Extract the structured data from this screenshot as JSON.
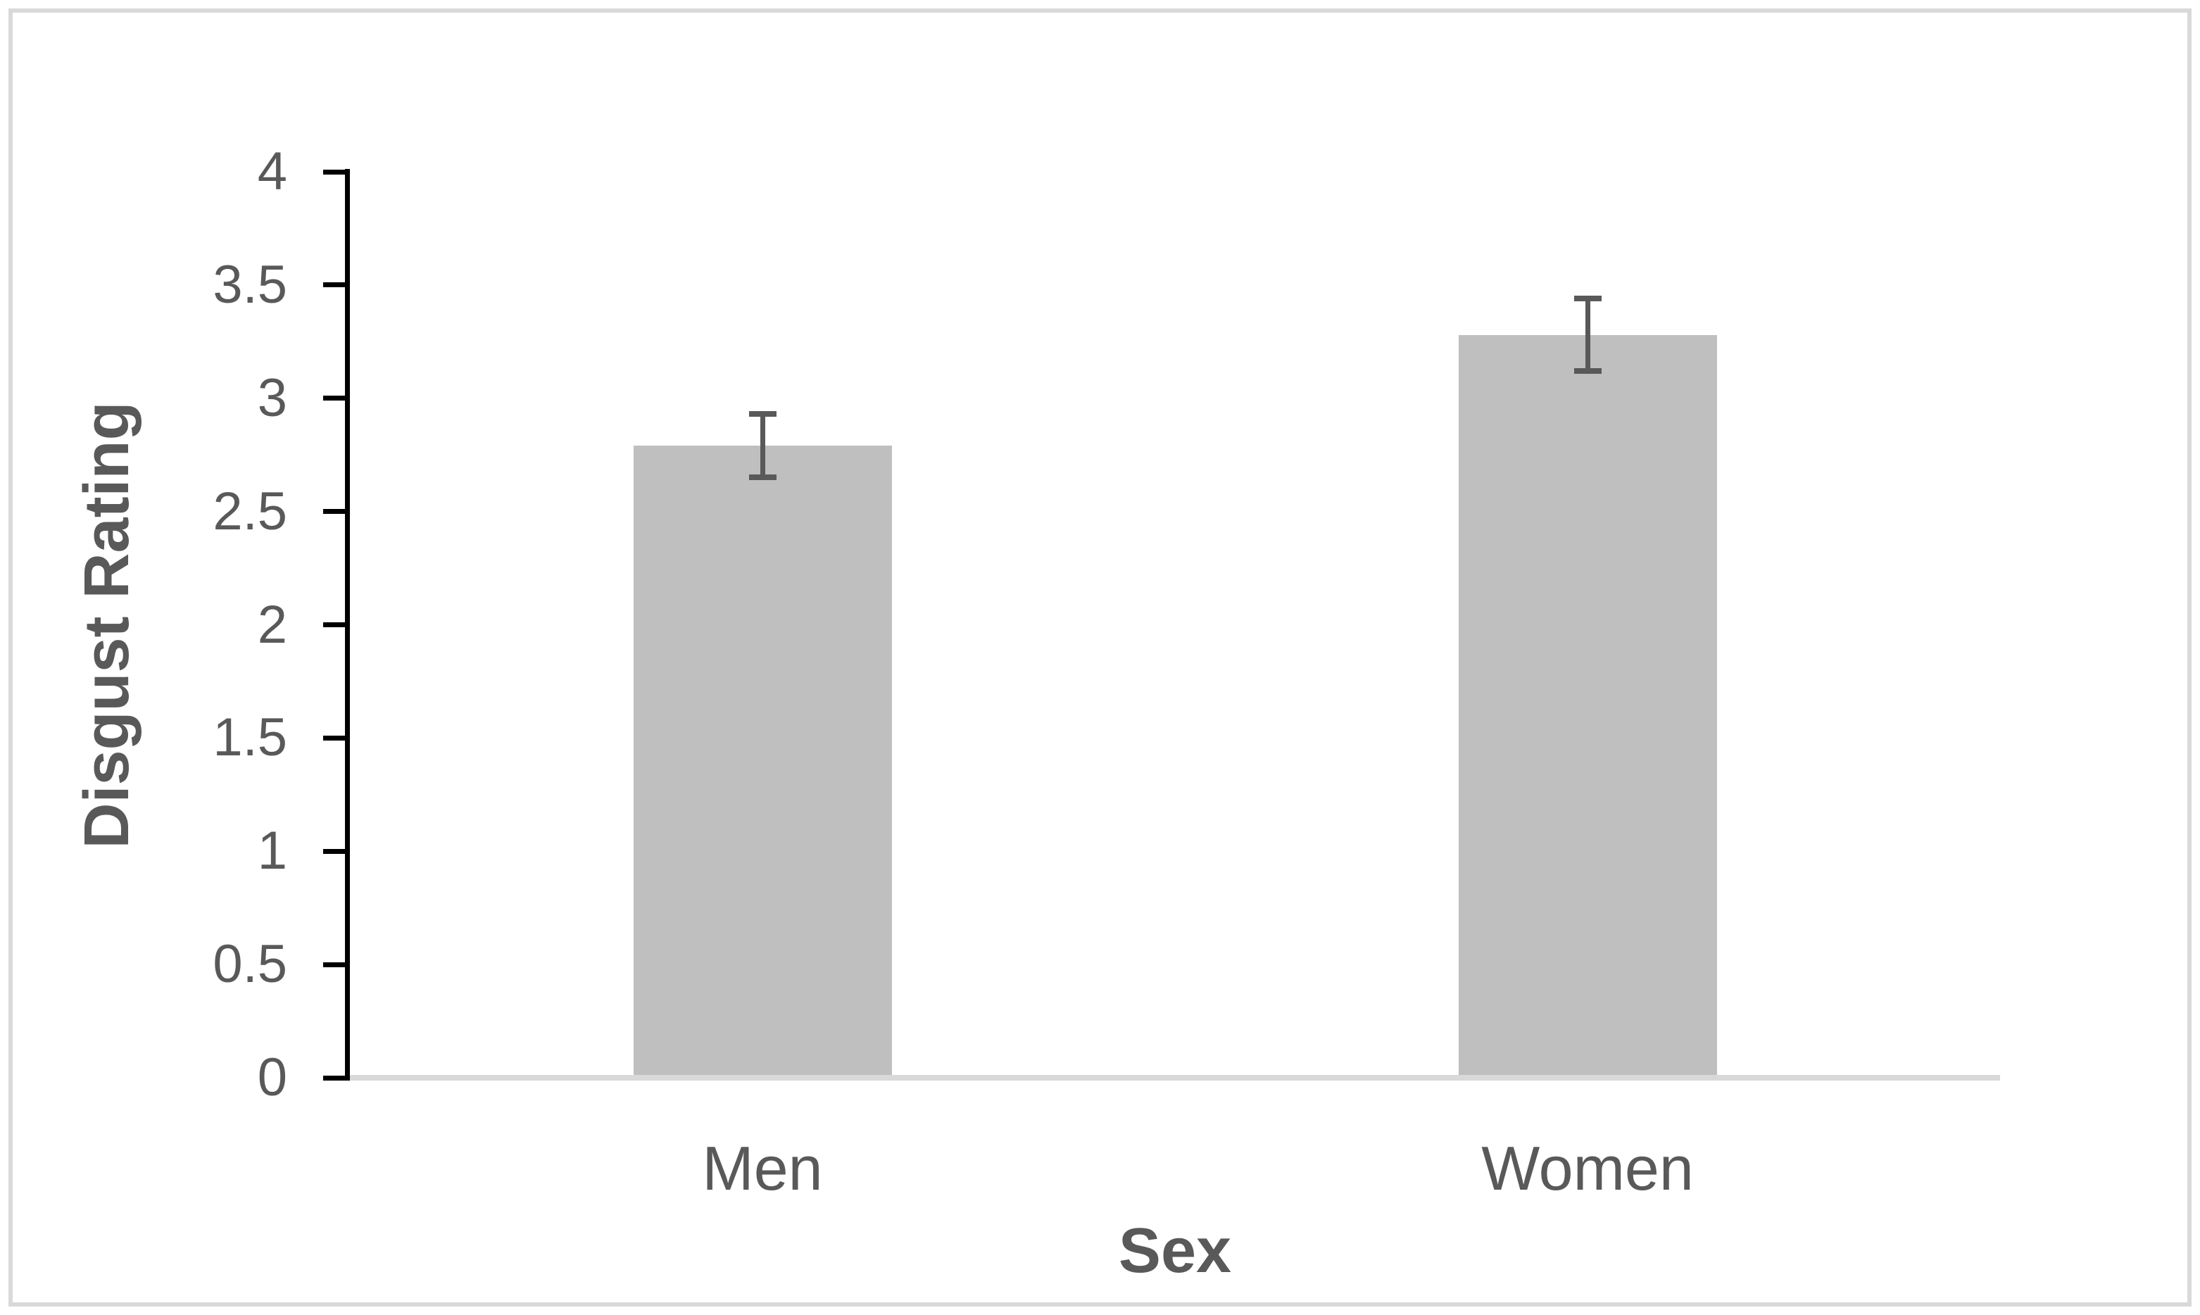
{
  "chart_data": {
    "type": "bar",
    "title": "",
    "categories": [
      "Men",
      "Women"
    ],
    "series": [
      {
        "name": "Disgust Rating",
        "values": [
          2.79,
          3.28
        ],
        "errors": [
          0.14,
          0.16
        ]
      }
    ],
    "xlabel": "Sex",
    "ylabel": "Disgust Rating",
    "ylim": [
      0,
      4
    ],
    "yticks": [
      0,
      0.5,
      1,
      1.5,
      2,
      2.5,
      3,
      3.5,
      4
    ],
    "ytick_labels": [
      "0",
      "0.5",
      "1",
      "1.5",
      "2",
      "2.5",
      "3",
      "3.5",
      "4"
    ],
    "grid": false,
    "legend": false,
    "error_bars": true,
    "colors": {
      "background": "#ffffff",
      "frame_border": "#d9d9d9",
      "bar_fill": "#bfbfbf",
      "error_bar": "#595959",
      "axis_line": "#000000",
      "x_baseline": "#d9d9d9",
      "text": "#595959"
    }
  }
}
